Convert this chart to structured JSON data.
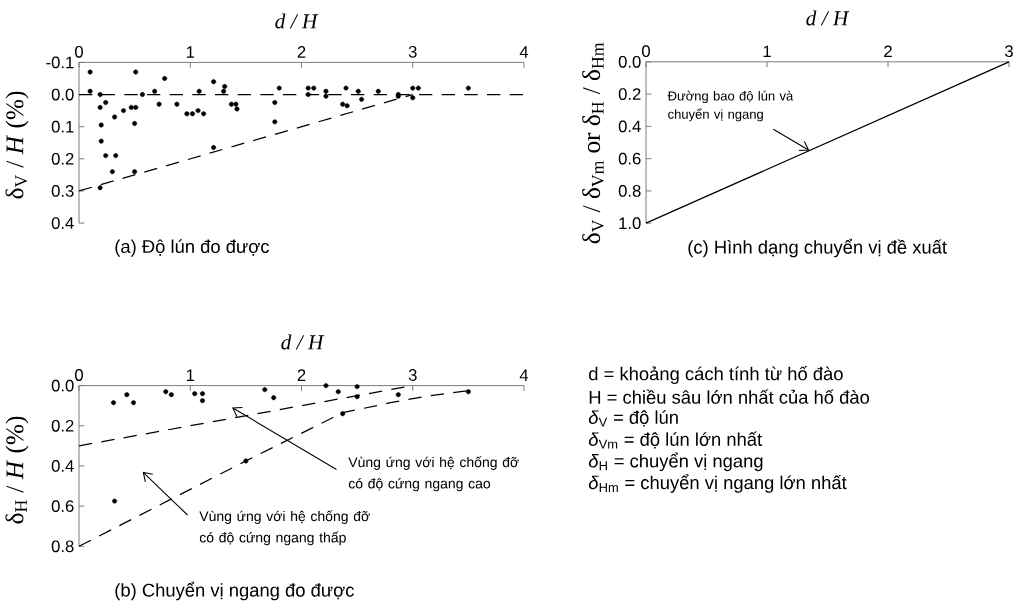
{
  "chart_data": [
    {
      "type": "scatter",
      "title": "(a) Độ lún đo được",
      "xlabel": "d / H",
      "ylabel": "δ$_{V}$ / *H* (%)",
      "xlim": [
        0,
        4
      ],
      "ylim": [
        0.4,
        -0.1
      ],
      "xticks": [
        0,
        1,
        2,
        3,
        4
      ],
      "yticks": [
        {
          "value": -0.1,
          "label": "-0.1"
        },
        {
          "value": 0,
          "label": "0.0"
        },
        0.1,
        0.2,
        0.3,
        0.4
      ],
      "series": [
        {
          "type": "scatter",
          "color": "#000000",
          "marker": "circle",
          "x": [
            0.1,
            0.1,
            0.19,
            0.19,
            0.2,
            0.2,
            0.24,
            0.24,
            0.19,
            0.3,
            0.32,
            0.33,
            0.4,
            0.47,
            0.51,
            0.5,
            0.51,
            0.5,
            0.57,
            0.68,
            0.72,
            0.77,
            0.88,
            0.97,
            1.02,
            1.07,
            1.08,
            1.12,
            1.21,
            1.21,
            1.3,
            1.31,
            1.37,
            1.41,
            1.42,
            1.76,
            1.76,
            1.8,
            2.06,
            2.06,
            2.11,
            2.22,
            2.22,
            2.4,
            2.37,
            2.41,
            2.51,
            2.54,
            2.69,
            2.87,
            2.87,
            3.0,
            3.05,
            3.0,
            3.5
          ],
          "values": [
            -0.07,
            -0.01,
            0.0,
            0.04,
            0.095,
            0.145,
            0.025,
            0.19,
            0.29,
            0.24,
            0.07,
            0.19,
            0.05,
            0.04,
            0.04,
            0.09,
            -0.07,
            0.24,
            0.0,
            -0.01,
            0.03,
            -0.05,
            0.03,
            0.06,
            0.06,
            0.05,
            -0.01,
            0.06,
            -0.04,
            0.165,
            -0.01,
            -0.025,
            0.03,
            0.03,
            0.045,
            0.025,
            0.085,
            -0.02,
            -0.02,
            0.0,
            -0.02,
            -0.01,
            0.005,
            -0.02,
            0.03,
            0.035,
            -0.01,
            0.015,
            -0.01,
            0.0,
            0.005,
            -0.02,
            -0.02,
            0.01,
            -0.02
          ]
        },
        {
          "type": "line",
          "color": "#000000",
          "line_style": "dashed",
          "x": [
            0,
            3
          ],
          "values": [
            0.3,
            0
          ]
        }
      ],
      "ref_lines": [
        {
          "axis": "y",
          "value": 0,
          "color": "#000000",
          "line_style": "dashed"
        }
      ]
    },
    {
      "type": "scatter",
      "title": "(b) Chuyển vị ngang đo được",
      "xlabel": "d / H",
      "ylabel": "δ$_{H}$ / *H* (%)",
      "xlim": [
        0,
        4
      ],
      "ylim": [
        0.8,
        0
      ],
      "xticks": [
        0,
        1,
        2,
        3,
        4
      ],
      "yticks": [
        {
          "value": 0,
          "label": "0.0"
        },
        0.2,
        0.4,
        0.6,
        0.8
      ],
      "series": [
        {
          "type": "scatter",
          "color": "#000000",
          "marker": "circle",
          "x": [
            0.31,
            0.43,
            0.49,
            0.78,
            0.83,
            1.04,
            1.11,
            1.11,
            1.67,
            1.75,
            2.22,
            2.33,
            2.5,
            2.5,
            2.37,
            2.87,
            3.5,
            1.5,
            0.32
          ],
          "values": [
            0.085,
            0.045,
            0.085,
            0.03,
            0.045,
            0.04,
            0.04,
            0.075,
            0.02,
            0.06,
            0.0,
            0.03,
            0.005,
            0.055,
            0.14,
            0.045,
            0.03,
            0.375,
            0.575
          ]
        },
        {
          "type": "line",
          "color": "#000000",
          "line_style": "dashed",
          "x": [
            0,
            3
          ],
          "values": [
            0.3,
            0
          ]
        },
        {
          "type": "line",
          "color": "#000000",
          "line_style": "dashed",
          "x": [
            0,
            1.5,
            2.37,
            2.8,
            3.1,
            3.5
          ],
          "values": [
            0.8,
            0.375,
            0.135,
            0.085,
            0.055,
            0.025
          ]
        }
      ],
      "annotations": [
        "Vùng ứng với hệ chống đỡ có độ cứng ngang cao",
        "Vùng ứng với hệ chống đỡ có độ cứng ngang thấp"
      ]
    },
    {
      "type": "line",
      "title": "(c) Hình dạng chuyển vị đề xuất",
      "xlabel": "d / H",
      "ylabel": "δ$_{V}$ / δ$_{Vm}$ or δ$_{H}$ / δ$_{Hm}$",
      "xlim": [
        0,
        3
      ],
      "ylim": [
        1.0,
        0
      ],
      "xticks": [
        0,
        1,
        2,
        3
      ],
      "yticks": [
        {
          "value": 0,
          "label": "0.0"
        },
        0.2,
        0.4,
        0.6,
        0.8,
        {
          "value": 1,
          "label": "1.0"
        }
      ],
      "x": [
        0,
        3
      ],
      "values": [
        1.0,
        0
      ],
      "color": "#000000",
      "line_style": "solid",
      "annotations": [
        {
          "text": "Đường bao độ lún và chuyển vị ngang",
          "x": 1.35,
          "y": 0.55
        }
      ]
    },
    {
      "type": "other",
      "annotations": [
        "d = khoảng cách tính từ hố đào",
        "H = chiều sâu lớn nhất của hố đào",
        "*δ*$_{V}$ = độ lún",
        "*δ*$_{Vm}$ = độ lún lớn nhất",
        "*δ*$_{H}$ = chuyển vị ngang",
        "*δ*$_{Hm}$ = chuyển vị ngang lớn nhất"
      ]
    }
  ]
}
